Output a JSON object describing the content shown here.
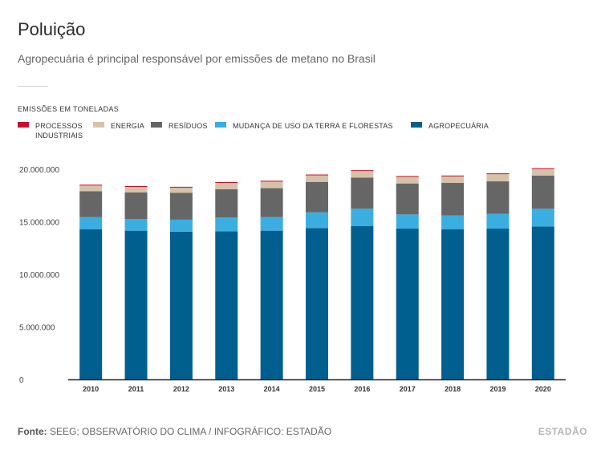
{
  "header": {
    "title": "Poluição",
    "subtitle": "Agropecuária é principal responsável por emissões de metano no Brasil"
  },
  "footer": {
    "source_label": "Fonte:",
    "source_text": "SEEG; OBSERVATÓRIO DO CLIMA / INFOGRÁFICO: ESTADÃO",
    "brand": "ESTADÃO"
  },
  "chart_data": {
    "type": "bar",
    "stacked": true,
    "units_label": "EMISSÕES EM TONELADAS",
    "categories": [
      "2010",
      "2011",
      "2012",
      "2013",
      "2014",
      "2015",
      "2016",
      "2017",
      "2018",
      "2019",
      "2020"
    ],
    "ylim": [
      0,
      20000000
    ],
    "yticks": [
      0,
      5000000,
      10000000,
      15000000,
      20000000
    ],
    "ytick_labels": [
      "0",
      "5.000.000",
      "10.000.000",
      "15.000.000",
      "20.000.000"
    ],
    "grid": false,
    "legend_position": "top",
    "series": [
      {
        "name": "AGROPECUÁRIA",
        "color": "#005f8f",
        "values": [
          14300000,
          14150000,
          14050000,
          14100000,
          14150000,
          14400000,
          14600000,
          14350000,
          14300000,
          14350000,
          14550000
        ]
      },
      {
        "name": "MUDANÇA DE USO DA TERRA E FLORESTAS",
        "color": "#3aaee0",
        "values": [
          1150000,
          1100000,
          1150000,
          1300000,
          1300000,
          1500000,
          1650000,
          1350000,
          1300000,
          1400000,
          1700000
        ]
      },
      {
        "name": "RESÍDUOS",
        "color": "#666666",
        "values": [
          2450000,
          2550000,
          2550000,
          2700000,
          2750000,
          2900000,
          2950000,
          2950000,
          3100000,
          3100000,
          3150000
        ]
      },
      {
        "name": "ENERGIA",
        "color": "#d6c2a8",
        "values": [
          550000,
          520000,
          500000,
          600000,
          620000,
          620000,
          630000,
          620000,
          620000,
          680000,
          620000
        ]
      },
      {
        "name": "PROCESSOS INDUSTRIAIS",
        "color": "#c8102e",
        "values": [
          80000,
          80000,
          80000,
          80000,
          80000,
          80000,
          80000,
          80000,
          80000,
          80000,
          80000
        ]
      }
    ],
    "legend_order": [
      "PROCESSOS INDUSTRIAIS",
      "ENERGIA",
      "RESÍDUOS",
      "MUDANÇA DE USO DA TERRA E FLORESTAS",
      "AGROPECUÁRIA"
    ]
  }
}
